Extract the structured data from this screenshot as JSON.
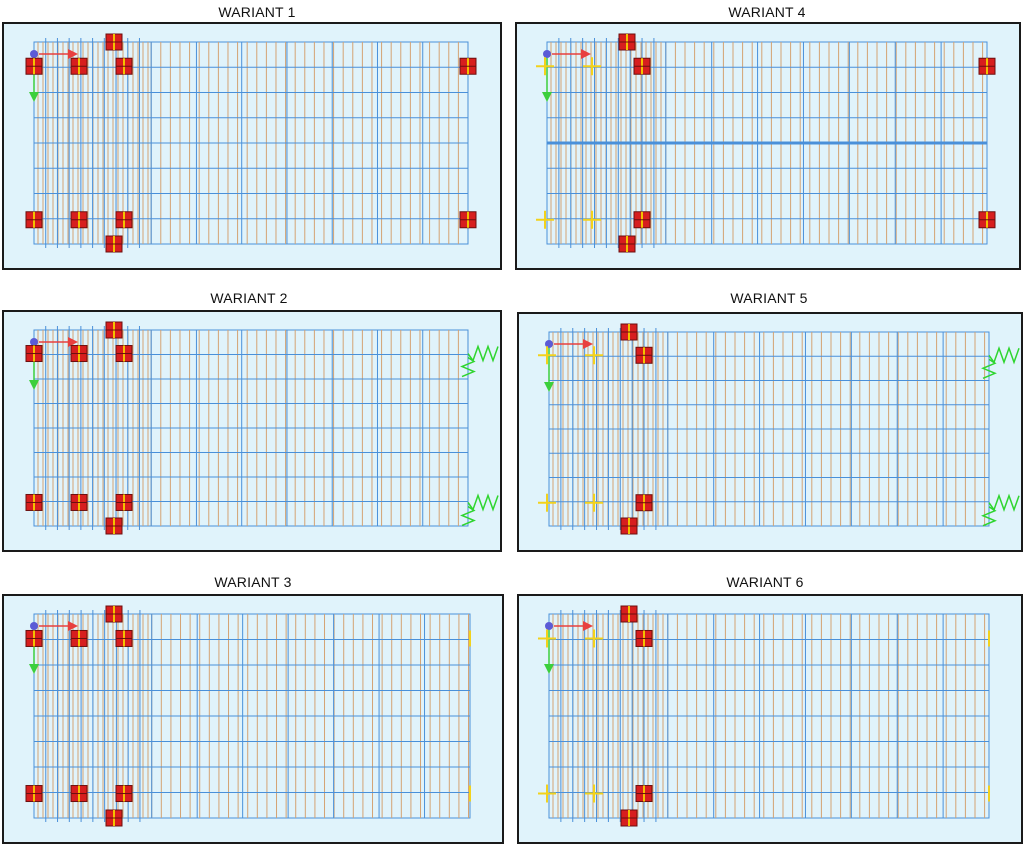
{
  "colors": {
    "background": "#e0f3fb",
    "grid_major": "#4a90d9",
    "grid_minor": "#d4a373",
    "support": "#d71e1e",
    "support_marker": "#f2c300",
    "spring": "#2fd52f",
    "axis_x": "#e8403f",
    "axis_y": "#3ccf3c",
    "origin": "#5b5bd6",
    "roller": "#f2d21c"
  },
  "variants": [
    {
      "id": 1,
      "title": "WARIANT 1",
      "right_support": "fixed-block",
      "edge_rollers": false,
      "center_beam": false
    },
    {
      "id": 2,
      "title": "WARIANT 2",
      "right_support": "spring",
      "edge_rollers": false,
      "center_beam": false
    },
    {
      "id": 3,
      "title": "WARIANT 3",
      "right_support": "roller",
      "edge_rollers": false,
      "center_beam": false
    },
    {
      "id": 4,
      "title": "WARIANT 4",
      "right_support": "fixed-block",
      "edge_rollers": true,
      "center_beam": true
    },
    {
      "id": 5,
      "title": "WARIANT 5",
      "right_support": "spring",
      "edge_rollers": true,
      "center_beam": false
    },
    {
      "id": 6,
      "title": "WARIANT 6",
      "right_support": "roller",
      "edge_rollers": true,
      "center_beam": false
    }
  ]
}
